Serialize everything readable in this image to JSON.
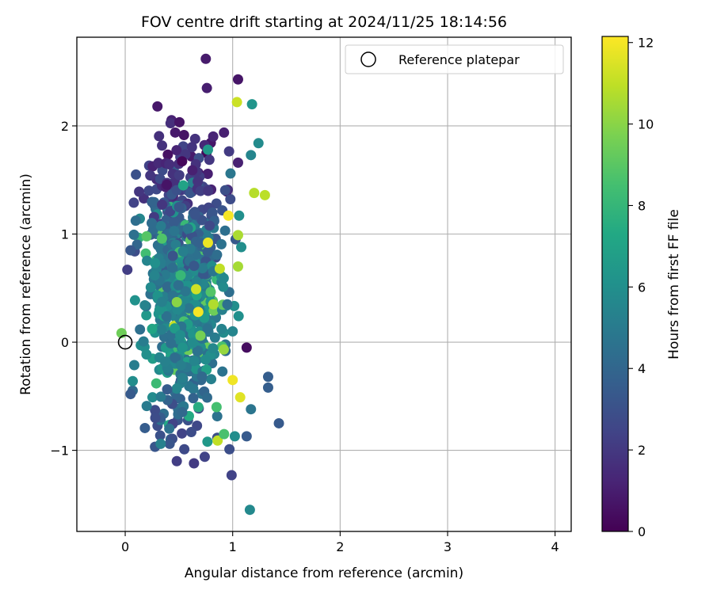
{
  "chart_data": {
    "type": "scatter",
    "title": "FOV centre drift starting at 2024/11/25 18:14:56",
    "xlabel": "Angular distance from reference (arcmin)",
    "ylabel": "Rotation from reference (arcmin)",
    "xlim": [
      -0.45,
      4.15
    ],
    "ylim": [
      -1.75,
      2.82
    ],
    "xticks": [
      0,
      1,
      2,
      3,
      4
    ],
    "yticks": [
      -1,
      0,
      1,
      2
    ],
    "xtick_labels": [
      "0",
      "1",
      "2",
      "3",
      "4"
    ],
    "ytick_labels": [
      "−1",
      "0",
      "1",
      "2"
    ],
    "grid": true,
    "legend": {
      "placement": "top-right",
      "label": "Reference platepar"
    },
    "colorbar": {
      "label": "Hours from first FF file",
      "colormap": "viridis",
      "range": [
        0,
        12.15
      ],
      "ticks": [
        0,
        2,
        4,
        6,
        8,
        10,
        12
      ],
      "tick_labels": [
        "0",
        "2",
        "4",
        "6",
        "8",
        "10",
        "12"
      ]
    },
    "reference_point": {
      "x": 0,
      "y": 0
    },
    "highlighted_points": [
      {
        "x": 0.75,
        "y": 2.62,
        "hours": 0.9
      },
      {
        "x": 1.05,
        "y": 2.43,
        "hours": 0.7
      },
      {
        "x": 0.76,
        "y": 2.35,
        "hours": 1.0
      },
      {
        "x": 1.04,
        "y": 2.22,
        "hours": 11.2
      },
      {
        "x": 1.18,
        "y": 2.2,
        "hours": 6.3
      },
      {
        "x": 0.3,
        "y": 2.18,
        "hours": 0.8
      },
      {
        "x": 1.24,
        "y": 1.84,
        "hours": 5.8
      },
      {
        "x": 0.77,
        "y": 1.78,
        "hours": 6.5
      },
      {
        "x": 1.17,
        "y": 1.73,
        "hours": 5.5
      },
      {
        "x": 1.05,
        "y": 1.66,
        "hours": 1.1
      },
      {
        "x": 0.98,
        "y": 1.56,
        "hours": 4.8
      },
      {
        "x": 0.1,
        "y": 1.55,
        "hours": 3.0
      },
      {
        "x": 0.54,
        "y": 1.45,
        "hours": 7.0
      },
      {
        "x": 1.2,
        "y": 1.38,
        "hours": 10.8
      },
      {
        "x": 1.3,
        "y": 1.36,
        "hours": 10.9
      },
      {
        "x": 0.08,
        "y": 1.29,
        "hours": 2.4
      },
      {
        "x": 0.96,
        "y": 1.17,
        "hours": 12.0
      },
      {
        "x": 1.06,
        "y": 1.17,
        "hours": 6.0
      },
      {
        "x": 1.05,
        "y": 0.99,
        "hours": 10.6
      },
      {
        "x": 0.77,
        "y": 0.92,
        "hours": 11.8
      },
      {
        "x": 0.05,
        "y": 0.85,
        "hours": 3.3
      },
      {
        "x": 1.05,
        "y": 0.7,
        "hours": 10.5
      },
      {
        "x": 0.88,
        "y": 0.68,
        "hours": 11.0
      },
      {
        "x": 0.66,
        "y": 0.49,
        "hours": 11.3
      },
      {
        "x": 0.82,
        "y": 0.35,
        "hours": 10.7
      },
      {
        "x": 0.48,
        "y": 0.37,
        "hours": 10.0
      },
      {
        "x": 0.68,
        "y": 0.28,
        "hours": 12.0
      },
      {
        "x": 0.02,
        "y": 0.67,
        "hours": 2.2
      },
      {
        "x": 0.95,
        "y": 0.35,
        "hours": 4.5
      },
      {
        "x": 1.13,
        "y": -0.05,
        "hours": 0.4
      },
      {
        "x": 0.7,
        "y": 0.06,
        "hours": 9.6
      },
      {
        "x": 1.0,
        "y": 0.1,
        "hours": 5.5
      },
      {
        "x": 0.07,
        "y": -0.36,
        "hours": 5.9
      },
      {
        "x": 0.05,
        "y": -0.48,
        "hours": 3.4
      },
      {
        "x": 1.0,
        "y": -0.35,
        "hours": 11.9
      },
      {
        "x": 1.07,
        "y": -0.51,
        "hours": 11.6
      },
      {
        "x": 1.33,
        "y": -0.32,
        "hours": 3.6
      },
      {
        "x": 1.33,
        "y": -0.42,
        "hours": 3.6
      },
      {
        "x": 1.17,
        "y": -0.62,
        "hours": 4.7
      },
      {
        "x": 0.85,
        "y": -0.6,
        "hours": 8.5
      },
      {
        "x": 1.43,
        "y": -0.75,
        "hours": 3.4
      },
      {
        "x": 1.13,
        "y": -0.87,
        "hours": 3.4
      },
      {
        "x": 0.86,
        "y": -0.91,
        "hours": 11.0
      },
      {
        "x": 1.02,
        "y": -0.87,
        "hours": 5.9
      },
      {
        "x": 0.33,
        "y": -0.94,
        "hours": 5.3
      },
      {
        "x": 0.97,
        "y": -0.99,
        "hours": 2.9
      },
      {
        "x": 0.55,
        "y": -0.99,
        "hours": 2.7
      },
      {
        "x": 0.74,
        "y": -1.06,
        "hours": 2.4
      },
      {
        "x": 0.48,
        "y": -1.1,
        "hours": 2.2
      },
      {
        "x": 0.64,
        "y": -1.12,
        "hours": 2.1
      },
      {
        "x": 0.99,
        "y": -1.23,
        "hours": 2.4
      },
      {
        "x": 1.16,
        "y": -1.55,
        "hours": 5.7
      },
      {
        "x": 0.41,
        "y": -0.8,
        "hours": 4.5
      },
      {
        "x": 0.68,
        "y": -0.6,
        "hours": 7.5
      },
      {
        "x": 0.92,
        "y": -0.85,
        "hours": 8.6
      },
      {
        "x": 0.28,
        "y": -0.7,
        "hours": 2.8
      },
      {
        "x": 0.2,
        "y": -0.59,
        "hours": 5.0
      }
    ],
    "cloud": {
      "count": 720,
      "y_range": [
        -1.0,
        2.1
      ],
      "x_min_range": [
        0.05,
        0.35
      ],
      "x_max_range": [
        0.7,
        1.1
      ],
      "hours_by_height": [
        {
          "y": 2.1,
          "hours": 0.8
        },
        {
          "y": 1.5,
          "hours": 1.8
        },
        {
          "y": 1.0,
          "hours": 4.2
        },
        {
          "y": 0.4,
          "hours": 5.5
        },
        {
          "y": -0.2,
          "hours": 5.5
        },
        {
          "y": -0.8,
          "hours": 3.2
        }
      ]
    }
  }
}
